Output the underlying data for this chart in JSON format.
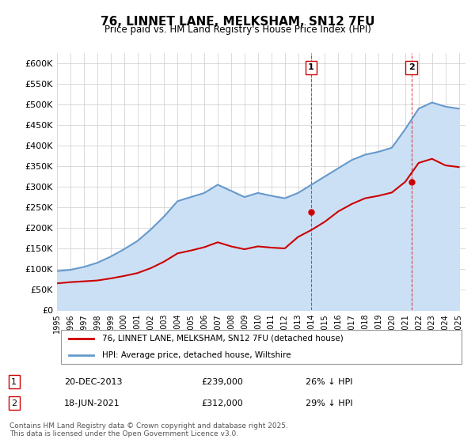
{
  "title": "76, LINNET LANE, MELKSHAM, SN12 7FU",
  "subtitle": "Price paid vs. HM Land Registry's House Price Index (HPI)",
  "legend_label_red": "76, LINNET LANE, MELKSHAM, SN12 7FU (detached house)",
  "legend_label_blue": "HPI: Average price, detached house, Wiltshire",
  "annotation1_label": "1",
  "annotation1_date": "20-DEC-2013",
  "annotation1_price": "£239,000",
  "annotation1_hpi": "26% ↓ HPI",
  "annotation1_year": 2013.97,
  "annotation2_label": "2",
  "annotation2_date": "18-JUN-2021",
  "annotation2_price": "£312,000",
  "annotation2_hpi": "29% ↓ HPI",
  "annotation2_year": 2021.46,
  "footer": "Contains HM Land Registry data © Crown copyright and database right 2025.\nThis data is licensed under the Open Government Licence v3.0.",
  "red_color": "#cc0000",
  "blue_color": "#6699cc",
  "blue_fill_color": "#cce0f5",
  "vline_color": "#cc0000",
  "grid_color": "#cccccc",
  "bg_color": "#ffffff",
  "ylim": [
    0,
    625000
  ],
  "xlim_start": 1995,
  "xlim_end": 2025.5,
  "hpi_years": [
    1995,
    1996,
    1997,
    1998,
    1999,
    2000,
    2001,
    2002,
    2003,
    2004,
    2005,
    2006,
    2007,
    2008,
    2009,
    2010,
    2011,
    2012,
    2013,
    2014,
    2015,
    2016,
    2017,
    2018,
    2019,
    2020,
    2021,
    2022,
    2023,
    2024,
    2025
  ],
  "hpi_values": [
    95000,
    98000,
    105000,
    115000,
    130000,
    148000,
    168000,
    196000,
    228000,
    265000,
    275000,
    285000,
    305000,
    290000,
    275000,
    285000,
    278000,
    272000,
    285000,
    305000,
    325000,
    345000,
    365000,
    378000,
    385000,
    395000,
    440000,
    490000,
    505000,
    495000,
    490000
  ],
  "red_years": [
    1995,
    1996,
    1997,
    1998,
    1999,
    2000,
    2001,
    2002,
    2003,
    2004,
    2005,
    2006,
    2007,
    2008,
    2009,
    2010,
    2011,
    2012,
    2013,
    2014,
    2015,
    2016,
    2017,
    2018,
    2019,
    2020,
    2021,
    2022,
    2023,
    2024,
    2025
  ],
  "red_values": [
    65000,
    68000,
    70000,
    72000,
    77000,
    83000,
    90000,
    102000,
    118000,
    138000,
    145000,
    153000,
    165000,
    155000,
    148000,
    155000,
    152000,
    150000,
    178000,
    195000,
    215000,
    240000,
    258000,
    272000,
    278000,
    286000,
    312000,
    358000,
    368000,
    352000,
    348000
  ]
}
